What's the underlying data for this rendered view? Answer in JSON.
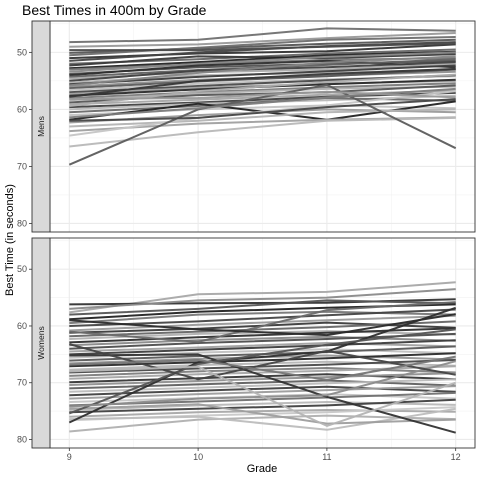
{
  "chart_data": {
    "type": "line",
    "title": "Best Times in 400m by Grade",
    "xlabel": "Grade",
    "ylabel": "Best Time (in seconds)",
    "x": [
      9,
      10,
      11,
      12
    ],
    "ylim": [
      81.5,
      44.5
    ],
    "y_reversed": true,
    "y_ticks": [
      50,
      60,
      70,
      80
    ],
    "grid": true,
    "series_color": "grayscale",
    "facets": [
      {
        "label": "Mens",
        "series": [
          {
            "values": [
              48.2,
              47.8,
              45.8,
              46.2
            ],
            "shade": "#707070"
          },
          {
            "values": [
              49.0,
              48.6,
              47.5,
              46.6
            ],
            "shade": "#999999"
          },
          {
            "values": [
              50.1,
              49.3,
              48.5,
              47.8
            ],
            "shade": "#555555"
          },
          {
            "values": [
              51.0,
              50.2,
              49.8,
              48.6
            ],
            "shade": "#333333"
          },
          {
            "values": [
              51.5,
              50.0,
              48.9,
              48.2
            ],
            "shade": "#444444"
          },
          {
            "values": [
              52.0,
              51.2,
              50.2,
              49.5
            ],
            "shade": "#666666"
          },
          {
            "values": [
              52.3,
              50.7,
              51.0,
              50.3
            ],
            "shade": "#3a3a3a"
          },
          {
            "values": [
              52.8,
              51.7,
              50.5,
              49.9
            ],
            "shade": "#222222"
          },
          {
            "values": [
              53.0,
              52.1,
              51.3,
              51.0
            ],
            "shade": "#777777"
          },
          {
            "values": [
              53.4,
              52.0,
              50.8,
              50.0
            ],
            "shade": "#888888"
          },
          {
            "values": [
              53.8,
              52.6,
              52.0,
              51.5
            ],
            "shade": "#505050"
          },
          {
            "values": [
              54.0,
              52.3,
              51.5,
              52.6
            ],
            "shade": "#2e2e2e"
          },
          {
            "values": [
              54.3,
              53.1,
              52.2,
              51.2
            ],
            "shade": "#606060"
          },
          {
            "values": [
              54.6,
              53.5,
              53.0,
              52.0
            ],
            "shade": "#aaaaaa"
          },
          {
            "values": [
              55.0,
              53.2,
              52.6,
              51.7
            ],
            "shade": "#404040"
          },
          {
            "values": [
              55.3,
              54.0,
              53.6,
              53.0
            ],
            "shade": "#b5b5b5"
          },
          {
            "values": [
              55.6,
              54.3,
              53.3,
              52.3
            ],
            "shade": "#3c3c3c"
          },
          {
            "values": [
              56.0,
              54.8,
              54.1,
              53.4
            ],
            "shade": "#8f8f8f"
          },
          {
            "values": [
              56.3,
              55.1,
              54.2,
              53.0
            ],
            "shade": "#5a5a5a"
          },
          {
            "values": [
              56.6,
              55.5,
              54.7,
              54.2
            ],
            "shade": "#c0c0c0"
          },
          {
            "values": [
              57.0,
              55.9,
              54.9,
              54.0
            ],
            "shade": "#494949"
          },
          {
            "values": [
              57.3,
              56.2,
              55.5,
              55.0
            ],
            "shade": "#9e9e9e"
          },
          {
            "values": [
              57.6,
              56.5,
              55.6,
              54.8
            ],
            "shade": "#2a2a2a"
          },
          {
            "values": [
              58.0,
              57.0,
              56.1,
              55.4
            ],
            "shade": "#7a7a7a"
          },
          {
            "values": [
              58.4,
              57.2,
              56.4,
              56.0
            ],
            "shade": "#b0b0b0"
          },
          {
            "values": [
              58.8,
              57.5,
              57.0,
              55.8
            ],
            "shade": "#555555"
          },
          {
            "values": [
              59.1,
              58.3,
              57.4,
              56.7
            ],
            "shade": "#a5a5a5"
          },
          {
            "values": [
              59.6,
              58.8,
              57.8,
              57.1
            ],
            "shade": "#3f3f3f"
          },
          {
            "values": [
              60.0,
              59.0,
              58.4,
              57.6
            ],
            "shade": "#b8b8b8"
          },
          {
            "values": [
              60.5,
              59.4,
              58.0,
              58.5
            ],
            "shade": "#6a6a6a"
          },
          {
            "values": [
              61.0,
              60.0,
              59.3,
              59.8
            ],
            "shade": "#c2c2c2"
          },
          {
            "values": [
              61.8,
              59.0,
              61.8,
              58.6
            ],
            "shade": "#222222"
          },
          {
            "values": [
              62.3,
              61.0,
              60.0,
              60.5
            ],
            "shade": "#9a9a9a"
          },
          {
            "values": [
              63.0,
              62.0,
              60.5,
              60.0
            ],
            "shade": "#b3b3b3"
          },
          {
            "values": [
              63.8,
              62.5,
              61.8,
              61.4
            ],
            "shade": "#a0a0a0"
          },
          {
            "values": [
              64.6,
              61.5,
              59.3,
              56.8
            ],
            "shade": "#c5c5c5"
          },
          {
            "values": [
              66.5,
              64.0,
              62.0,
              61.5
            ],
            "shade": "#b8b8b8"
          },
          {
            "values": [
              69.7,
              60.0,
              55.7,
              66.8
            ],
            "shade": "#5c5c5c"
          },
          {
            "values": [
              50.5,
              49.2,
              47.8,
              47.3
            ],
            "shade": "#6e6e6e"
          },
          {
            "values": [
              49.6,
              49.6,
              49.0,
              48.4
            ],
            "shade": "#4a4a4a"
          },
          {
            "values": [
              55.8,
              53.6,
              51.8,
              50.7
            ],
            "shade": "#858585"
          },
          {
            "values": [
              57.8,
              55.0,
              53.8,
              52.9
            ],
            "shade": "#363636"
          },
          {
            "values": [
              59.4,
              56.8,
              55.2,
              53.9
            ],
            "shade": "#adadad"
          },
          {
            "values": [
              61.4,
              59.8,
              57.9,
              56.4
            ],
            "shade": "#7d7d7d"
          },
          {
            "values": [
              58.2,
              58.0,
              56.9,
              57.9
            ],
            "shade": "#999999"
          },
          {
            "values": [
              62.0,
              61.5,
              59.6,
              58.2
            ],
            "shade": "#464646"
          }
        ]
      },
      {
        "label": "Womens",
        "series": [
          {
            "values": [
              57.6,
              54.4,
              54.0,
              52.3
            ],
            "shade": "#a8a8a8"
          },
          {
            "values": [
              56.2,
              56.0,
              55.9,
              55.3
            ],
            "shade": "#333333"
          },
          {
            "values": [
              57.0,
              55.5,
              55.0,
              53.5
            ],
            "shade": "#8a8a8a"
          },
          {
            "values": [
              58.0,
              57.0,
              55.5,
              56.0
            ],
            "shade": "#555555"
          },
          {
            "values": [
              58.8,
              57.5,
              56.8,
              56.2
            ],
            "shade": "#222222"
          },
          {
            "values": [
              59.5,
              58.0,
              57.5,
              58.0
            ],
            "shade": "#777777"
          },
          {
            "values": [
              60.0,
              59.2,
              58.1,
              57.1
            ],
            "shade": "#444444"
          },
          {
            "values": [
              60.8,
              59.8,
              59.0,
              58.2
            ],
            "shade": "#999999"
          },
          {
            "values": [
              61.2,
              60.5,
              59.4,
              60.3
            ],
            "shade": "#3a3a3a"
          },
          {
            "values": [
              61.8,
              61.0,
              60.2,
              59.2
            ],
            "shade": "#666666"
          },
          {
            "values": [
              62.3,
              61.4,
              60.9,
              61.5
            ],
            "shade": "#b0b0b0"
          },
          {
            "values": [
              62.9,
              62.0,
              61.2,
              60.4
            ],
            "shade": "#2e2e2e"
          },
          {
            "values": [
              63.4,
              62.5,
              61.9,
              62.6
            ],
            "shade": "#888888"
          },
          {
            "values": [
              64.0,
              63.0,
              62.3,
              61.4
            ],
            "shade": "#4d4d4d"
          },
          {
            "values": [
              64.5,
              63.8,
              63.0,
              63.6
            ],
            "shade": "#a0a0a0"
          },
          {
            "values": [
              65.0,
              64.2,
              63.4,
              62.5
            ],
            "shade": "#3c3c3c"
          },
          {
            "values": [
              65.6,
              64.7,
              64.1,
              64.8
            ],
            "shade": "#c0c0c0"
          },
          {
            "values": [
              66.1,
              65.3,
              64.6,
              63.6
            ],
            "shade": "#5a5a5a"
          },
          {
            "values": [
              66.6,
              65.8,
              65.2,
              65.9
            ],
            "shade": "#959595"
          },
          {
            "values": [
              67.1,
              66.4,
              65.7,
              64.8
            ],
            "shade": "#2a2a2a"
          },
          {
            "values": [
              67.7,
              66.9,
              66.3,
              67.0
            ],
            "shade": "#b5b5b5"
          },
          {
            "values": [
              68.2,
              67.5,
              66.8,
              66.0
            ],
            "shade": "#494949"
          },
          {
            "values": [
              68.8,
              68.0,
              67.4,
              68.2
            ],
            "shade": "#7d7d7d"
          },
          {
            "values": [
              69.3,
              68.5,
              67.9,
              67.1
            ],
            "shade": "#a5a5a5"
          },
          {
            "values": [
              69.9,
              69.2,
              68.5,
              69.4
            ],
            "shade": "#363636"
          },
          {
            "values": [
              70.4,
              69.7,
              69.0,
              68.3
            ],
            "shade": "#8f8f8f"
          },
          {
            "values": [
              71.0,
              70.3,
              69.6,
              70.5
            ],
            "shade": "#606060"
          },
          {
            "values": [
              71.6,
              70.9,
              70.1,
              69.4
            ],
            "shade": "#bbbbbb"
          },
          {
            "values": [
              72.2,
              71.4,
              70.7,
              71.6
            ],
            "shade": "#404040"
          },
          {
            "values": [
              72.8,
              72.0,
              71.3,
              70.6
            ],
            "shade": "#9c9c9c"
          },
          {
            "values": [
              73.4,
              72.7,
              72.0,
              72.8
            ],
            "shade": "#c4c4c4"
          },
          {
            "values": [
              74.0,
              73.3,
              72.6,
              71.8
            ],
            "shade": "#707070"
          },
          {
            "values": [
              74.8,
              74.0,
              73.4,
              73.9
            ],
            "shade": "#b8b8b8"
          },
          {
            "values": [
              75.2,
              74.6,
              74.0,
              73.0
            ],
            "shade": "#3f3f3f"
          },
          {
            "values": [
              76.0,
              75.2,
              74.8,
              75.1
            ],
            "shade": "#a8a8a8"
          },
          {
            "values": [
              76.6,
              75.8,
              75.2,
              74.3
            ],
            "shade": "#c8c8c8"
          },
          {
            "values": [
              78.6,
              76.5,
              75.8,
              76.4
            ],
            "shade": "#b0b0b0"
          },
          {
            "values": [
              76.4,
              76.0,
              78.3,
              74.6
            ],
            "shade": "#bdbdbd"
          },
          {
            "values": [
              74.6,
              73.8,
              77.2,
              76.5
            ],
            "shade": "#9e9e9e"
          },
          {
            "values": [
              65.2,
              65.0,
              72.5,
              78.8
            ],
            "shade": "#333333"
          },
          {
            "values": [
              77.0,
              66.4,
              64.5,
              56.8
            ],
            "shade": "#2e2e2e"
          },
          {
            "values": [
              75.4,
              66.7,
              63.3,
              60.6
            ],
            "shade": "#555555"
          },
          {
            "values": [
              74.2,
              72.8,
              72.2,
              66.2
            ],
            "shade": "#8c8c8c"
          },
          {
            "values": [
              63.2,
              69.4,
              64.4,
              68.6
            ],
            "shade": "#454545"
          },
          {
            "values": [
              66.8,
              66.0,
              69.5,
              65.4
            ],
            "shade": "#767676"
          },
          {
            "values": [
              68.0,
              67.2,
              77.6,
              70.0
            ],
            "shade": "#b4b4b4"
          },
          {
            "values": [
              61.0,
              62.8,
              57.2,
              55.8
            ],
            "shade": "#6a6a6a"
          },
          {
            "values": [
              59.0,
              60.6,
              61.6,
              57.9
            ],
            "shade": "#2b2b2b"
          }
        ]
      }
    ]
  }
}
